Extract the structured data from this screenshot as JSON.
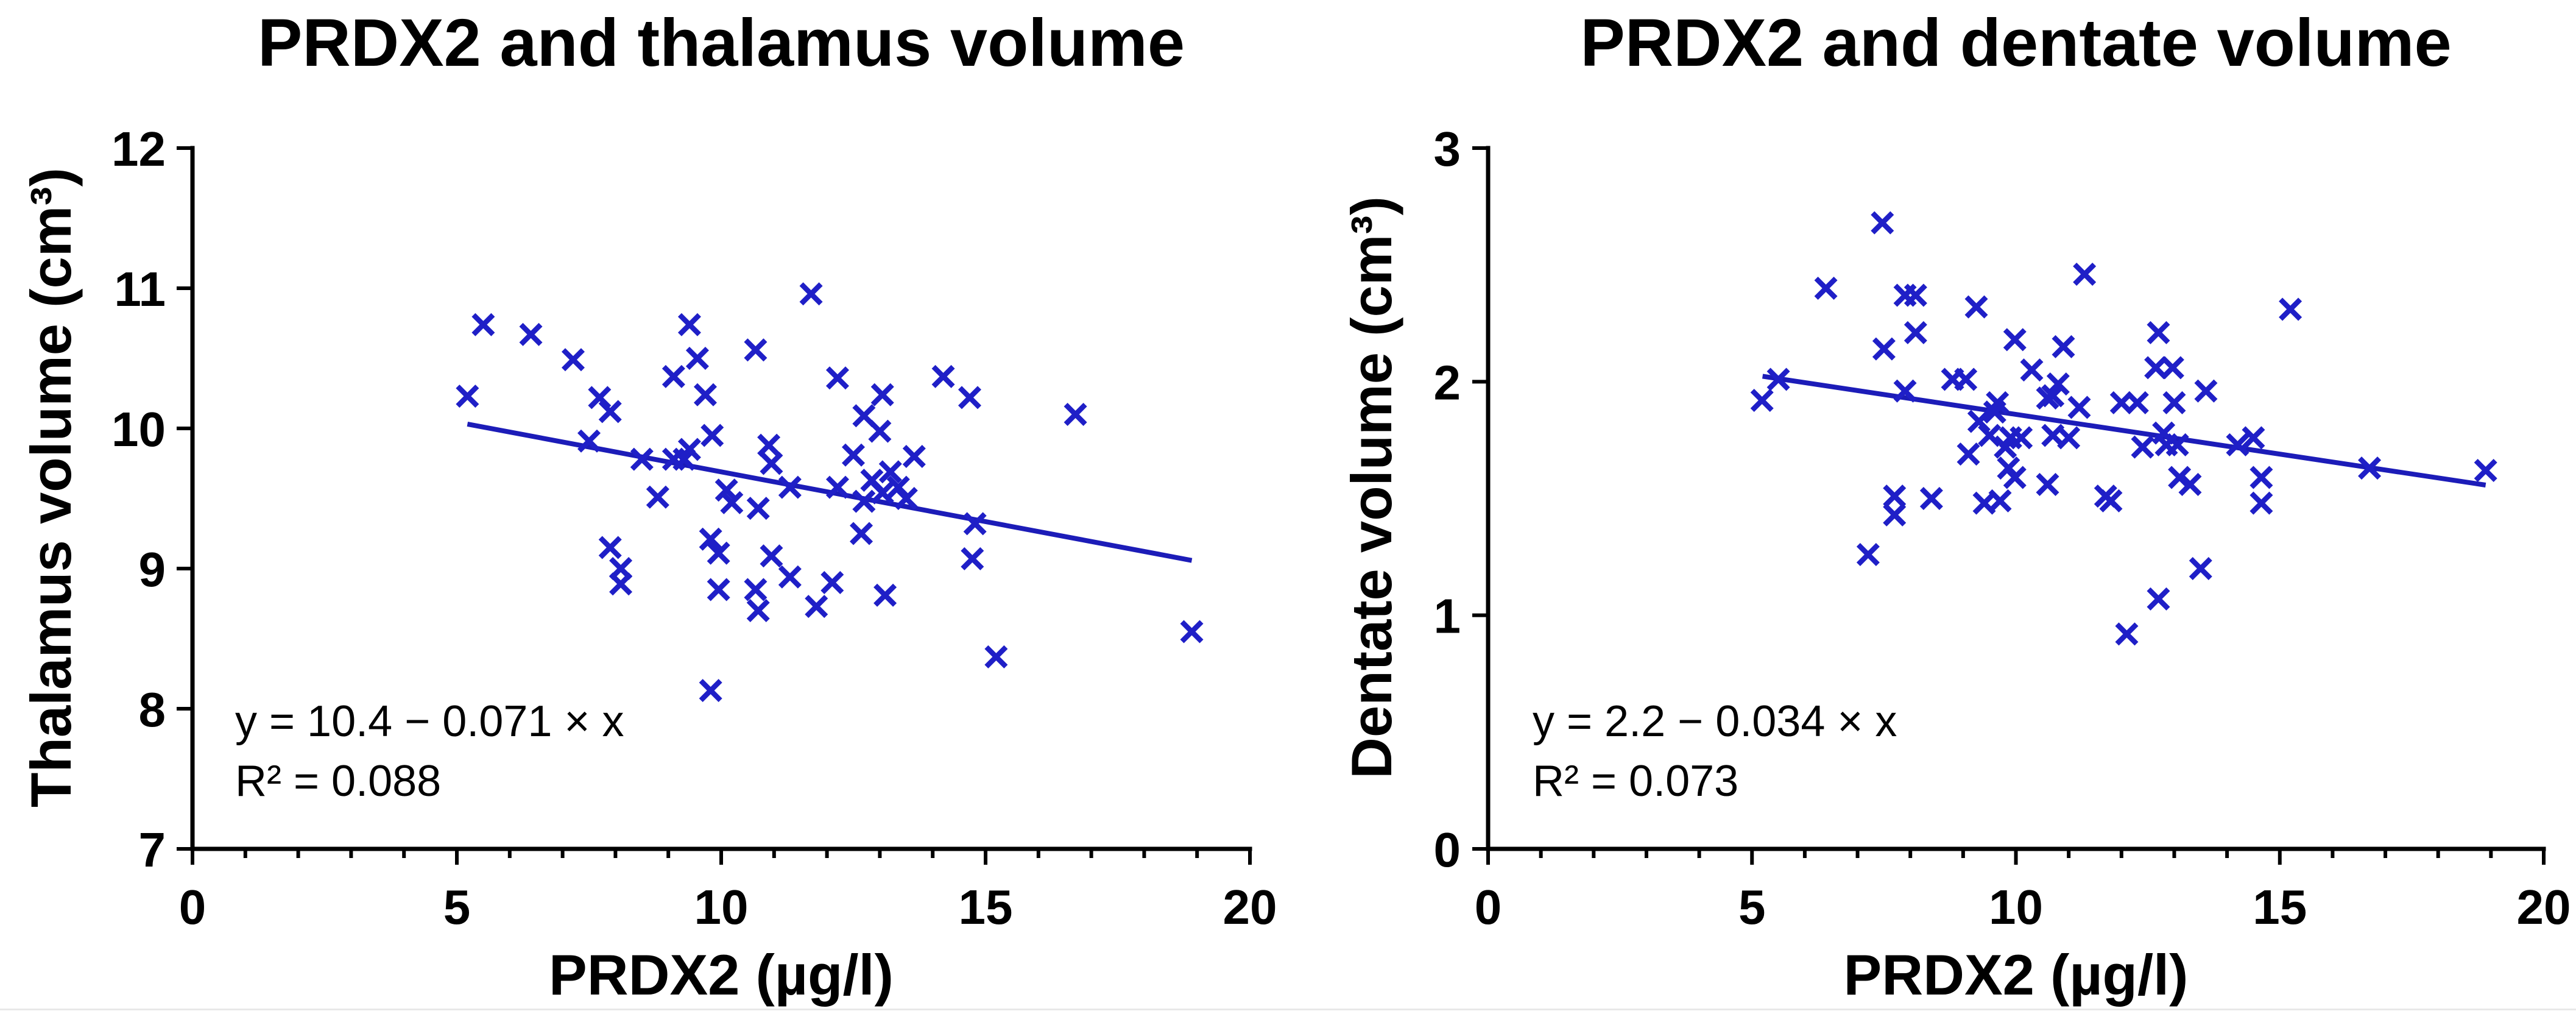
{
  "chart_data": [
    {
      "type": "scatter",
      "title": "PRDX2 and thalamus volume",
      "xlabel": "PRDX2 (µg/l)",
      "ylabel": "Thalamus volume (cm³)",
      "xlim": [
        0,
        20
      ],
      "ylim": [
        7,
        12
      ],
      "x_ticks": [
        0,
        5,
        10,
        15,
        20
      ],
      "x_tick_labels": [
        "0",
        "5",
        "10",
        "15",
        "20"
      ],
      "x_minor_tick_step": 1,
      "y_ticks": [
        7,
        8,
        9,
        10,
        11,
        12
      ],
      "y_tick_labels": [
        "7",
        "8",
        "9",
        "10",
        "11",
        "12"
      ],
      "marker_color": "#1f1fc7",
      "line_color": "#1c1cb8",
      "axis_color": "#000000",
      "x": [
        5.2,
        5.5,
        6.4,
        7.2,
        7.5,
        7.7,
        7.9,
        7.9,
        8.1,
        8.1,
        8.5,
        8.8,
        9.1,
        9.1,
        9.3,
        9.4,
        9.4,
        9.55,
        9.7,
        9.83,
        9.8,
        9.95,
        9.95,
        9.8,
        10.1,
        10.2,
        10.65,
        10.7,
        10.65,
        10.7,
        10.9,
        10.95,
        10.95,
        11.3,
        11.3,
        11.7,
        11.8,
        12.1,
        12.2,
        12.2,
        12.5,
        12.7,
        12.7,
        12.65,
        12.85,
        13.0,
        13.05,
        13.05,
        13.1,
        13.2,
        13.35,
        13.5,
        13.65,
        14.2,
        14.7,
        14.8,
        14.75,
        15.2,
        16.7,
        18.9
      ],
      "y": [
        10.23,
        10.74,
        10.67,
        10.49,
        9.91,
        10.22,
        10.12,
        9.15,
        9.0,
        8.89,
        9.78,
        9.51,
        10.37,
        9.78,
        9.78,
        9.85,
        10.74,
        10.5,
        10.24,
        9.95,
        9.21,
        9.11,
        8.85,
        8.13,
        9.56,
        9.47,
        10.56,
        9.43,
        8.85,
        8.7,
        9.88,
        9.75,
        9.09,
        9.58,
        8.94,
        10.96,
        8.73,
        8.9,
        10.36,
        9.58,
        9.81,
        10.09,
        9.48,
        9.25,
        9.63,
        9.98,
        10.24,
        9.54,
        8.81,
        9.69,
        9.58,
        9.5,
        9.8,
        10.37,
        10.22,
        9.32,
        9.07,
        8.37,
        10.1,
        8.55
      ],
      "fit": {
        "intercept": 10.4,
        "slope": -0.071,
        "x_range": [
          5.2,
          18.9
        ]
      },
      "annotation": {
        "equation": "y = 10.4 − 0.071 × x",
        "r_squared": "R² = 0.088"
      }
    },
    {
      "type": "scatter",
      "title": "PRDX2 and dentate volume",
      "xlabel": "PRDX2 (µg/l)",
      "ylabel": "Dentate volume (cm³)",
      "xlim": [
        0,
        20
      ],
      "ylim": [
        0,
        3
      ],
      "x_ticks": [
        0,
        5,
        10,
        15,
        20
      ],
      "x_tick_labels": [
        "0",
        "5",
        "10",
        "15",
        "20"
      ],
      "x_minor_tick_step": 1,
      "y_ticks": [
        0,
        1,
        2,
        3
      ],
      "y_tick_labels": [
        "0",
        "1",
        "2",
        "3"
      ],
      "marker_color": "#1f1fc7",
      "line_color": "#1c1cb8",
      "axis_color": "#000000",
      "x": [
        5.19,
        5.5,
        6.4,
        7.47,
        7.2,
        7.5,
        7.7,
        7.7,
        7.9,
        7.9,
        8.1,
        8.1,
        8.4,
        8.8,
        9.05,
        9.1,
        9.25,
        9.3,
        9.5,
        9.4,
        9.6,
        9.65,
        9.7,
        9.8,
        9.86,
        9.9,
        9.98,
        9.98,
        10.1,
        10.3,
        10.6,
        10.6,
        10.7,
        10.7,
        10.8,
        10.9,
        11.0,
        11.2,
        11.3,
        11.7,
        11.8,
        12.0,
        12.1,
        12.3,
        12.4,
        12.65,
        12.7,
        12.7,
        12.8,
        12.85,
        12.97,
        13.0,
        13.06,
        13.1,
        13.3,
        13.5,
        13.6,
        14.2,
        14.5,
        14.65,
        14.65,
        15.2,
        16.7,
        18.9
      ],
      "y": [
        1.92,
        2.01,
        2.4,
        2.68,
        1.26,
        2.14,
        1.51,
        1.43,
        1.96,
        2.37,
        2.37,
        2.21,
        1.5,
        2.01,
        2.01,
        1.69,
        2.32,
        1.83,
        1.77,
        1.48,
        1.87,
        1.91,
        1.49,
        1.72,
        1.63,
        1.76,
        2.18,
        1.59,
        1.76,
        2.05,
        1.93,
        1.56,
        1.77,
        1.94,
        1.99,
        2.15,
        1.76,
        1.89,
        2.46,
        1.51,
        1.49,
        1.91,
        0.92,
        1.91,
        1.72,
        2.06,
        1.07,
        2.21,
        1.78,
        1.73,
        2.06,
        1.91,
        1.73,
        1.59,
        1.56,
        1.2,
        1.96,
        1.73,
        1.76,
        1.59,
        1.48,
        2.31,
        1.63,
        1.62
      ],
      "fit": {
        "intercept": 2.2,
        "slope": -0.034,
        "x_range": [
          5.2,
          18.9
        ]
      },
      "annotation": {
        "equation": "y = 2.2 − 0.034 × x",
        "r_squared": "R² = 0.073"
      }
    }
  ]
}
